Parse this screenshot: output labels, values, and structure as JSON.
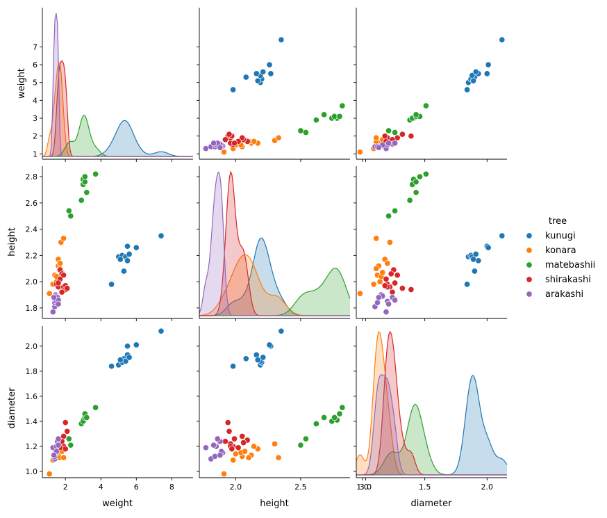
{
  "chart_data": {
    "type": "pairplot",
    "variables": [
      "weight",
      "height",
      "diameter"
    ],
    "axis_ranges": {
      "weight": [
        0.7,
        9.2
      ],
      "height": [
        1.72,
        2.88
      ],
      "diameter": [
        0.95,
        2.16
      ]
    },
    "axis_ticks": {
      "weight": [
        2,
        4,
        6,
        8
      ],
      "weight_y": [
        1,
        2,
        3,
        4,
        5,
        6,
        7
      ],
      "height": [
        2.0,
        2.5,
        3.0
      ],
      "height_y": [
        1.8,
        2.0,
        2.2,
        2.4,
        2.6,
        2.8
      ],
      "diameter": [
        1.0,
        1.5,
        2.0
      ],
      "diameter_y": [
        1.0,
        1.2,
        1.4,
        1.6,
        1.8,
        2.0
      ]
    },
    "tick_labels": {
      "weight_x": [
        "2",
        "4",
        "6",
        "8"
      ],
      "weight_y": [
        "1",
        "2",
        "3",
        "4",
        "5",
        "6",
        "7"
      ],
      "height_x": [
        "2.0",
        "2.5",
        "3.0"
      ],
      "height_y": [
        "1.8",
        "2.0",
        "2.2",
        "2.4",
        "2.6",
        "2.8"
      ],
      "diameter_x": [
        "1.0",
        "1.5",
        "2.0"
      ],
      "diameter_y": [
        "1.0",
        "1.2",
        "1.4",
        "1.6",
        "1.8",
        "2.0"
      ]
    },
    "legend": {
      "title": "tree",
      "placement": "right"
    },
    "series": [
      {
        "name": "kunugi",
        "color": "#1f77b4",
        "weight": [
          4.6,
          5.0,
          5.2,
          5.3,
          5.4,
          5.5,
          5.5,
          5.6,
          6.0,
          7.4,
          5.1
        ],
        "height": [
          1.98,
          2.19,
          2.2,
          2.08,
          2.19,
          2.27,
          2.16,
          2.21,
          2.26,
          2.35,
          2.17
        ],
        "diameter": [
          1.84,
          1.85,
          1.87,
          1.9,
          1.88,
          2.0,
          1.93,
          1.91,
          2.01,
          2.12,
          1.89
        ]
      },
      {
        "name": "konara",
        "color": "#ff7f0e",
        "weight": [
          1.1,
          1.3,
          1.4,
          1.5,
          1.5,
          1.6,
          1.6,
          1.7,
          1.7,
          1.75,
          1.8,
          1.9
        ],
        "height": [
          1.91,
          1.98,
          2.05,
          2.0,
          2.04,
          2.12,
          2.17,
          2.14,
          2.1,
          2.3,
          2.07,
          2.33
        ],
        "diameter": [
          0.98,
          1.09,
          1.12,
          1.14,
          1.15,
          1.13,
          1.18,
          1.2,
          1.11,
          1.22,
          1.16,
          1.11
        ]
      },
      {
        "name": "matebashii",
        "color": "#2ca02c",
        "weight": [
          2.2,
          2.3,
          2.9,
          3.0,
          3.0,
          3.1,
          3.1,
          3.2,
          3.7
        ],
        "height": [
          2.54,
          2.5,
          2.62,
          2.78,
          2.74,
          2.76,
          2.8,
          2.68,
          2.82
        ],
        "diameter": [
          1.26,
          1.21,
          1.38,
          1.41,
          1.4,
          1.43,
          1.46,
          1.43,
          1.51
        ]
      },
      {
        "name": "shirakashi",
        "color": "#d62728",
        "weight": [
          1.5,
          1.6,
          1.7,
          1.8,
          1.9,
          1.9,
          2.0,
          2.0,
          2.1,
          1.7,
          1.8,
          1.6
        ],
        "height": [
          1.98,
          1.96,
          2.09,
          2.06,
          1.96,
          2.05,
          1.94,
          1.97,
          1.95,
          2.02,
          1.92,
          1.99
        ],
        "diameter": [
          1.2,
          1.22,
          1.25,
          1.23,
          1.2,
          1.28,
          1.39,
          1.18,
          1.32,
          1.19,
          1.24,
          1.26
        ]
      },
      {
        "name": "arakashi",
        "color": "#9467bd",
        "weight": [
          1.3,
          1.4,
          1.4,
          1.45,
          1.5,
          1.5,
          1.55,
          1.6,
          1.6,
          1.35
        ],
        "height": [
          1.77,
          1.81,
          1.84,
          1.9,
          1.85,
          1.89,
          1.88,
          1.86,
          1.83,
          1.88
        ],
        "diameter": [
          1.19,
          1.1,
          1.12,
          1.15,
          1.2,
          1.16,
          1.24,
          1.26,
          1.21,
          1.13
        ]
      }
    ]
  }
}
